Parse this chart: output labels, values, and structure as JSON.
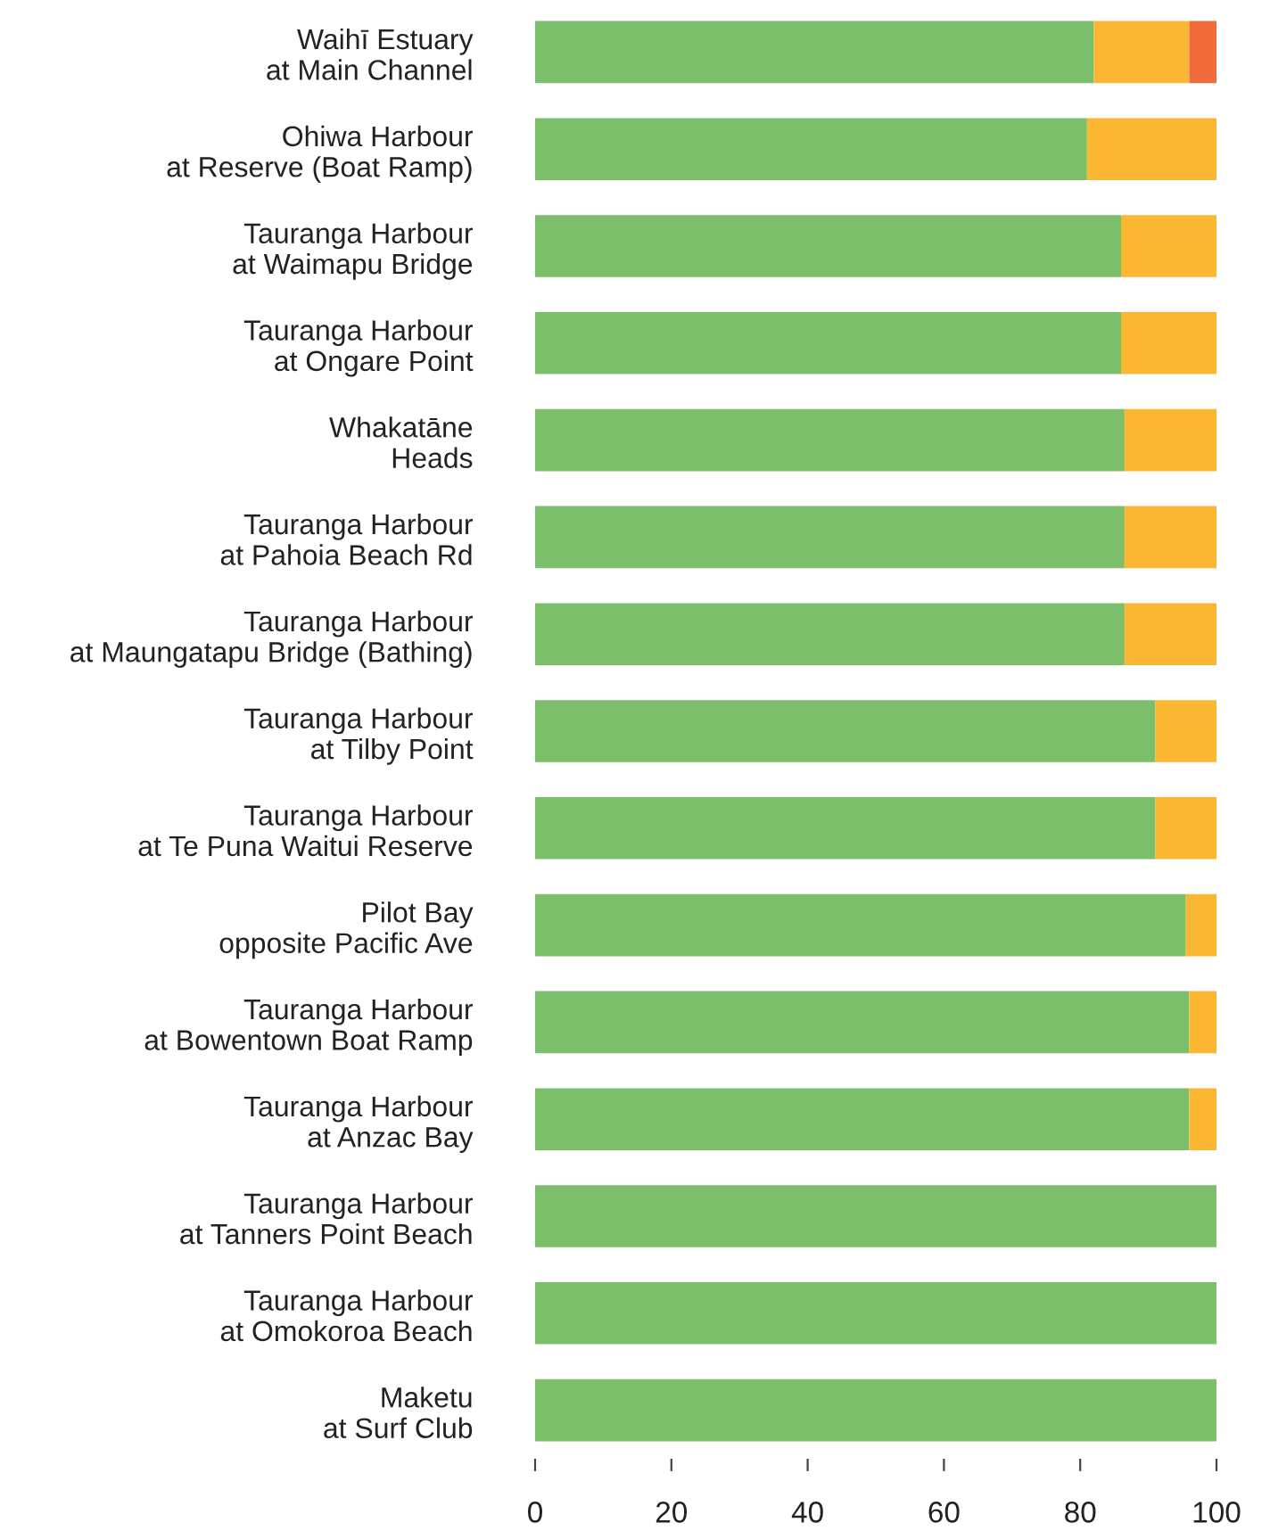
{
  "chart_data": {
    "type": "bar",
    "orientation": "horizontal",
    "stacked": true,
    "categories": [
      "Waihī Estuary\nat Main Channel",
      "Ohiwa Harbour\nat Reserve (Boat Ramp)",
      "Tauranga Harbour\nat Waimapu Bridge",
      "Tauranga Harbour\nat Ongare Point",
      "Whakatāne\nHeads",
      "Tauranga Harbour\nat Pahoia Beach Rd",
      "Tauranga Harbour\nat Maungatapu Bridge (Bathing)",
      "Tauranga Harbour\nat Tilby Point",
      "Tauranga Harbour\nat Te Puna Waitui Reserve",
      "Pilot Bay\nopposite Pacific Ave",
      "Tauranga Harbour\nat Bowentown Boat Ramp",
      "Tauranga Harbour\nat Anzac Bay",
      "Tauranga Harbour\nat Tanners Point Beach",
      "Tauranga Harbour\nat Omokoroa Beach",
      "Maketu\nat Surf Club"
    ],
    "series": [
      {
        "color": "#7cbf6a",
        "values": [
          82,
          81,
          86,
          86,
          86.5,
          86.5,
          86.5,
          91,
          91,
          95.5,
          96,
          96,
          100,
          100,
          100
        ]
      },
      {
        "color": "#fbb731",
        "values": [
          14,
          19,
          14,
          14,
          13.5,
          13.5,
          13.5,
          9,
          9,
          4.5,
          4,
          4,
          0,
          0,
          0
        ]
      },
      {
        "color": "#f26b3a",
        "values": [
          4,
          0,
          0,
          0,
          0,
          0,
          0,
          0,
          0,
          0,
          0,
          0,
          0,
          0,
          0
        ]
      }
    ],
    "xlim": [
      0,
      100
    ],
    "xticks": [
      0,
      20,
      40,
      60,
      80,
      100
    ],
    "grid": false,
    "legend": false
  }
}
